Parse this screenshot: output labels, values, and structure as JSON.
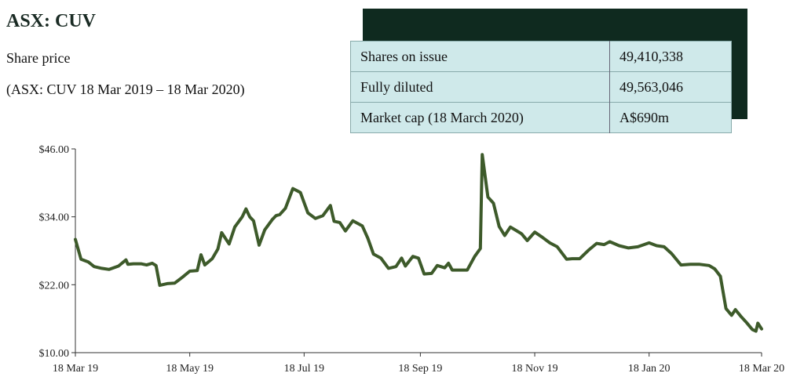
{
  "header": {
    "ticker": "ASX: CUV",
    "subtitle": "Share price",
    "range": "(ASX: CUV 18 Mar 2019 – 18 Mar 2020)"
  },
  "stats": [
    {
      "label": "Shares on issue",
      "value": "49,410,338"
    },
    {
      "label": "Fully diluted",
      "value": "49,563,046"
    },
    {
      "label": "Market cap (18 March 2020)",
      "value": "A$690m"
    }
  ],
  "colors": {
    "line": "#3d5a2a",
    "dark_box": "#0f2a1f",
    "table_bg": "#cfe9ea"
  },
  "chart_data": {
    "type": "line",
    "title": "",
    "xlabel": "",
    "ylabel": "",
    "ylim": [
      10,
      46
    ],
    "yticks": [
      "$10.00",
      "$22.00",
      "$34.00",
      "$46.00"
    ],
    "ytick_values": [
      10,
      22,
      34,
      46
    ],
    "xticks": [
      "18 Mar 19",
      "18 May 19",
      "18 Jul 19",
      "18 Sep 19",
      "18 Nov 19",
      "18 Jan 20",
      "18 Mar 20"
    ],
    "xtick_dates": [
      "2019-03-18",
      "2019-05-18",
      "2019-07-18",
      "2019-09-18",
      "2019-11-18",
      "2020-01-18",
      "2020-03-18"
    ],
    "grid": false,
    "series": [
      {
        "values": [
          [
            "2019-03-18",
            30.0
          ],
          [
            "2019-03-21",
            26.5
          ],
          [
            "2019-03-25",
            26.0
          ],
          [
            "2019-03-28",
            25.2
          ],
          [
            "2019-04-01",
            24.9
          ],
          [
            "2019-04-05",
            24.7
          ],
          [
            "2019-04-10",
            25.3
          ],
          [
            "2019-04-14",
            26.4
          ],
          [
            "2019-04-15",
            25.6
          ],
          [
            "2019-04-18",
            25.7
          ],
          [
            "2019-04-22",
            25.7
          ],
          [
            "2019-04-25",
            25.5
          ],
          [
            "2019-04-28",
            25.8
          ],
          [
            "2019-04-30",
            25.4
          ],
          [
            "2019-05-02",
            21.9
          ],
          [
            "2019-05-06",
            22.2
          ],
          [
            "2019-05-10",
            22.3
          ],
          [
            "2019-05-14",
            23.3
          ],
          [
            "2019-05-18",
            24.4
          ],
          [
            "2019-05-22",
            24.5
          ],
          [
            "2019-05-24",
            27.3
          ],
          [
            "2019-05-26",
            25.5
          ],
          [
            "2019-05-30",
            26.6
          ],
          [
            "2019-06-02",
            28.3
          ],
          [
            "2019-06-04",
            31.2
          ],
          [
            "2019-06-08",
            29.2
          ],
          [
            "2019-06-11",
            32.2
          ],
          [
            "2019-06-15",
            34.0
          ],
          [
            "2019-06-17",
            35.4
          ],
          [
            "2019-06-19",
            34.0
          ],
          [
            "2019-06-21",
            33.3
          ],
          [
            "2019-06-24",
            29.0
          ],
          [
            "2019-06-27",
            31.7
          ],
          [
            "2019-07-01",
            33.5
          ],
          [
            "2019-07-03",
            34.2
          ],
          [
            "2019-07-05",
            34.4
          ],
          [
            "2019-07-08",
            35.5
          ],
          [
            "2019-07-12",
            39.0
          ],
          [
            "2019-07-16",
            38.3
          ],
          [
            "2019-07-20",
            34.7
          ],
          [
            "2019-07-24",
            33.7
          ],
          [
            "2019-07-28",
            34.2
          ],
          [
            "2019-08-01",
            36.0
          ],
          [
            "2019-08-03",
            33.2
          ],
          [
            "2019-08-06",
            33.0
          ],
          [
            "2019-08-09",
            31.5
          ],
          [
            "2019-08-13",
            33.3
          ],
          [
            "2019-08-18",
            32.4
          ],
          [
            "2019-08-21",
            30.2
          ],
          [
            "2019-08-24",
            27.4
          ],
          [
            "2019-08-28",
            26.7
          ],
          [
            "2019-09-01",
            24.9
          ],
          [
            "2019-09-05",
            25.2
          ],
          [
            "2019-09-08",
            26.7
          ],
          [
            "2019-09-10",
            25.3
          ],
          [
            "2019-09-14",
            27.0
          ],
          [
            "2019-09-17",
            26.7
          ],
          [
            "2019-09-20",
            23.9
          ],
          [
            "2019-09-24",
            24.0
          ],
          [
            "2019-09-27",
            25.4
          ],
          [
            "2019-10-01",
            25.0
          ],
          [
            "2019-10-03",
            25.8
          ],
          [
            "2019-10-05",
            24.6
          ],
          [
            "2019-10-09",
            24.6
          ],
          [
            "2019-10-13",
            24.6
          ],
          [
            "2019-10-17",
            27.0
          ],
          [
            "2019-10-20",
            28.4
          ],
          [
            "2019-10-21",
            45.0
          ],
          [
            "2019-10-24",
            37.5
          ],
          [
            "2019-10-27",
            36.4
          ],
          [
            "2019-10-30",
            32.3
          ],
          [
            "2019-11-02",
            30.7
          ],
          [
            "2019-11-05",
            32.2
          ],
          [
            "2019-11-08",
            31.6
          ],
          [
            "2019-11-11",
            31.0
          ],
          [
            "2019-11-14",
            29.8
          ],
          [
            "2019-11-18",
            31.3
          ],
          [
            "2019-11-22",
            30.4
          ],
          [
            "2019-11-26",
            29.4
          ],
          [
            "2019-11-30",
            28.7
          ],
          [
            "2019-12-05",
            26.5
          ],
          [
            "2019-12-08",
            26.6
          ],
          [
            "2019-12-12",
            26.6
          ],
          [
            "2019-12-17",
            28.2
          ],
          [
            "2019-12-21",
            29.3
          ],
          [
            "2019-12-25",
            29.1
          ],
          [
            "2019-12-28",
            29.6
          ],
          [
            "2020-01-02",
            28.9
          ],
          [
            "2020-01-07",
            28.5
          ],
          [
            "2020-01-12",
            28.7
          ],
          [
            "2020-01-18",
            29.4
          ],
          [
            "2020-01-22",
            28.9
          ],
          [
            "2020-01-26",
            28.7
          ],
          [
            "2020-01-30",
            27.5
          ],
          [
            "2020-02-04",
            25.5
          ],
          [
            "2020-02-09",
            25.6
          ],
          [
            "2020-02-14",
            25.6
          ],
          [
            "2020-02-19",
            25.4
          ],
          [
            "2020-02-22",
            24.8
          ],
          [
            "2020-02-25",
            23.5
          ],
          [
            "2020-02-28",
            17.8
          ],
          [
            "2020-03-02",
            16.6
          ],
          [
            "2020-03-04",
            17.6
          ],
          [
            "2020-03-07",
            16.4
          ],
          [
            "2020-03-10",
            15.3
          ],
          [
            "2020-03-13",
            14.1
          ],
          [
            "2020-03-15",
            13.8
          ],
          [
            "2020-03-16",
            15.2
          ],
          [
            "2020-03-18",
            14.2
          ]
        ]
      }
    ]
  }
}
